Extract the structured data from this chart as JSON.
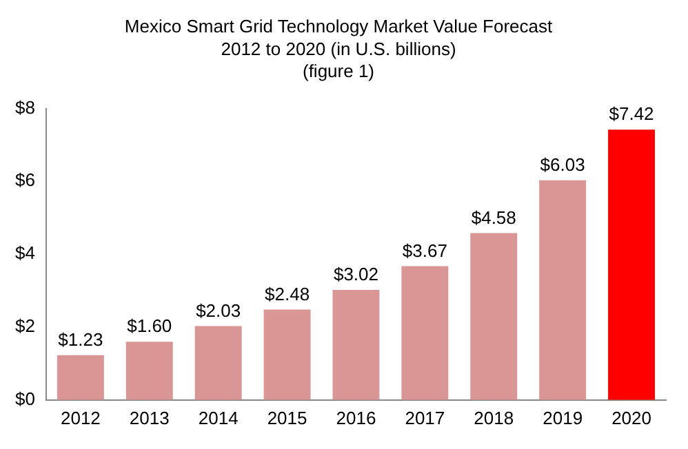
{
  "chart_data": {
    "type": "bar",
    "title": "Mexico Smart Grid Technology Market Value Forecast\n2012 to 2020 (in U.S. billions)\n(figure 1)",
    "categories": [
      "2012",
      "2013",
      "2014",
      "2015",
      "2016",
      "2017",
      "2018",
      "2019",
      "2020"
    ],
    "values": [
      1.23,
      1.6,
      2.03,
      2.48,
      3.02,
      3.67,
      4.58,
      6.03,
      7.42
    ],
    "colors": [
      "#d99694",
      "#d99694",
      "#d99694",
      "#d99694",
      "#d99694",
      "#d99694",
      "#d99694",
      "#d99694",
      "#ff0000"
    ],
    "value_labels": [
      "$1.23",
      "$1.60",
      "$2.03",
      "$2.48",
      "$3.02",
      "$3.67",
      "$4.58",
      "$6.03",
      "$7.42"
    ],
    "ylim": [
      0,
      8
    ],
    "yticks": [
      {
        "value": 0,
        "label": "$0"
      },
      {
        "value": 2,
        "label": "$2"
      },
      {
        "value": 4,
        "label": "$4"
      },
      {
        "value": 6,
        "label": "$6"
      },
      {
        "value": 8,
        "label": "$8"
      }
    ],
    "grid": false,
    "legend": false
  }
}
